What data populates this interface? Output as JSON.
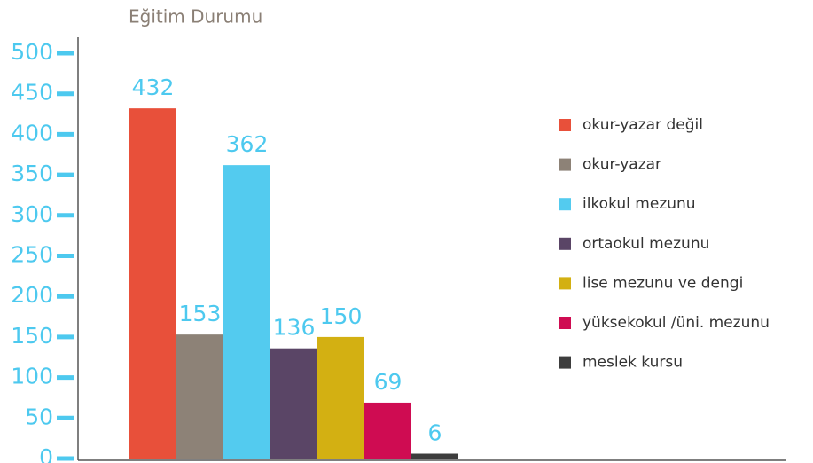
{
  "chart_data": {
    "type": "bar",
    "title": "Eğitim Durumu",
    "categories": [
      null
    ],
    "series": [
      {
        "name": "okur-yazar değil",
        "color": "#e8503a",
        "values": [
          432
        ]
      },
      {
        "name": "okur-yazar",
        "color": "#8d8277",
        "values": [
          153
        ]
      },
      {
        "name": "ilkokul mezunu",
        "color": "#53cbef",
        "values": [
          362
        ]
      },
      {
        "name": "ortaokul mezunu",
        "color": "#5a4566",
        "values": [
          136
        ]
      },
      {
        "name": "lise mezunu ve dengi",
        "color": "#d3b012",
        "values": [
          150
        ]
      },
      {
        "name": "yüksekokul /üni. mezunu",
        "color": "#cf0c52",
        "values": [
          69
        ]
      },
      {
        "name": "meslek kursu",
        "color": "#3d3d3d",
        "values": [
          6
        ]
      }
    ],
    "ylim": [
      0,
      500
    ],
    "yticks": [
      0,
      50,
      100,
      150,
      200,
      250,
      300,
      350,
      400,
      450,
      500
    ],
    "legend": "right"
  }
}
